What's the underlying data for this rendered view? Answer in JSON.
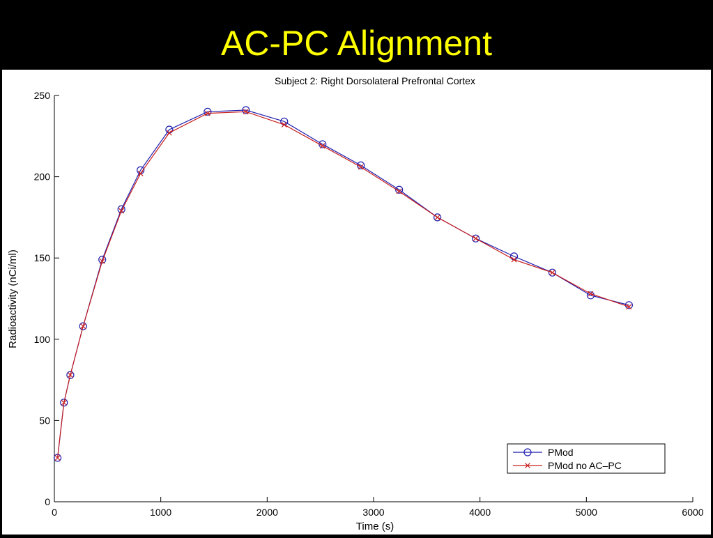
{
  "slide": {
    "title": "AC-PC Alignment"
  },
  "colors": {
    "background": "#000000",
    "title": "#ffff00",
    "plot_background": "#ffffff",
    "series_pmod": "#1f1fb0",
    "series_pmod_no_acpc": "#c81e1e"
  },
  "chart_data": {
    "type": "line",
    "title": "Subject 2: Right Dorsolateral Prefrontal Cortex",
    "xlabel": "Time (s)",
    "ylabel": "Radioactivity (nCi/ml)",
    "xlim": [
      0,
      6000
    ],
    "ylim": [
      0,
      250
    ],
    "xticks": [
      0,
      1000,
      2000,
      3000,
      4000,
      5000,
      6000
    ],
    "yticks": [
      0,
      50,
      100,
      150,
      200,
      250
    ],
    "grid": false,
    "legend_position": "right",
    "x": [
      30,
      90,
      150,
      270,
      450,
      630,
      810,
      1080,
      1440,
      1800,
      2160,
      2520,
      2880,
      3240,
      3600,
      3960,
      4320,
      4680,
      5040,
      5400
    ],
    "series": [
      {
        "name": "PMod",
        "marker": "circle",
        "values": [
          27,
          61,
          78,
          108,
          149,
          180,
          204,
          229,
          240,
          241,
          234,
          220,
          207,
          192,
          175,
          162,
          151,
          141,
          127,
          121
        ]
      },
      {
        "name": "PMod no AC–PC",
        "marker": "x",
        "values": [
          27,
          61,
          78,
          108,
          148,
          179,
          202,
          227,
          239,
          240,
          232,
          219,
          206,
          191,
          175,
          162,
          149,
          141,
          128,
          120
        ]
      }
    ]
  }
}
